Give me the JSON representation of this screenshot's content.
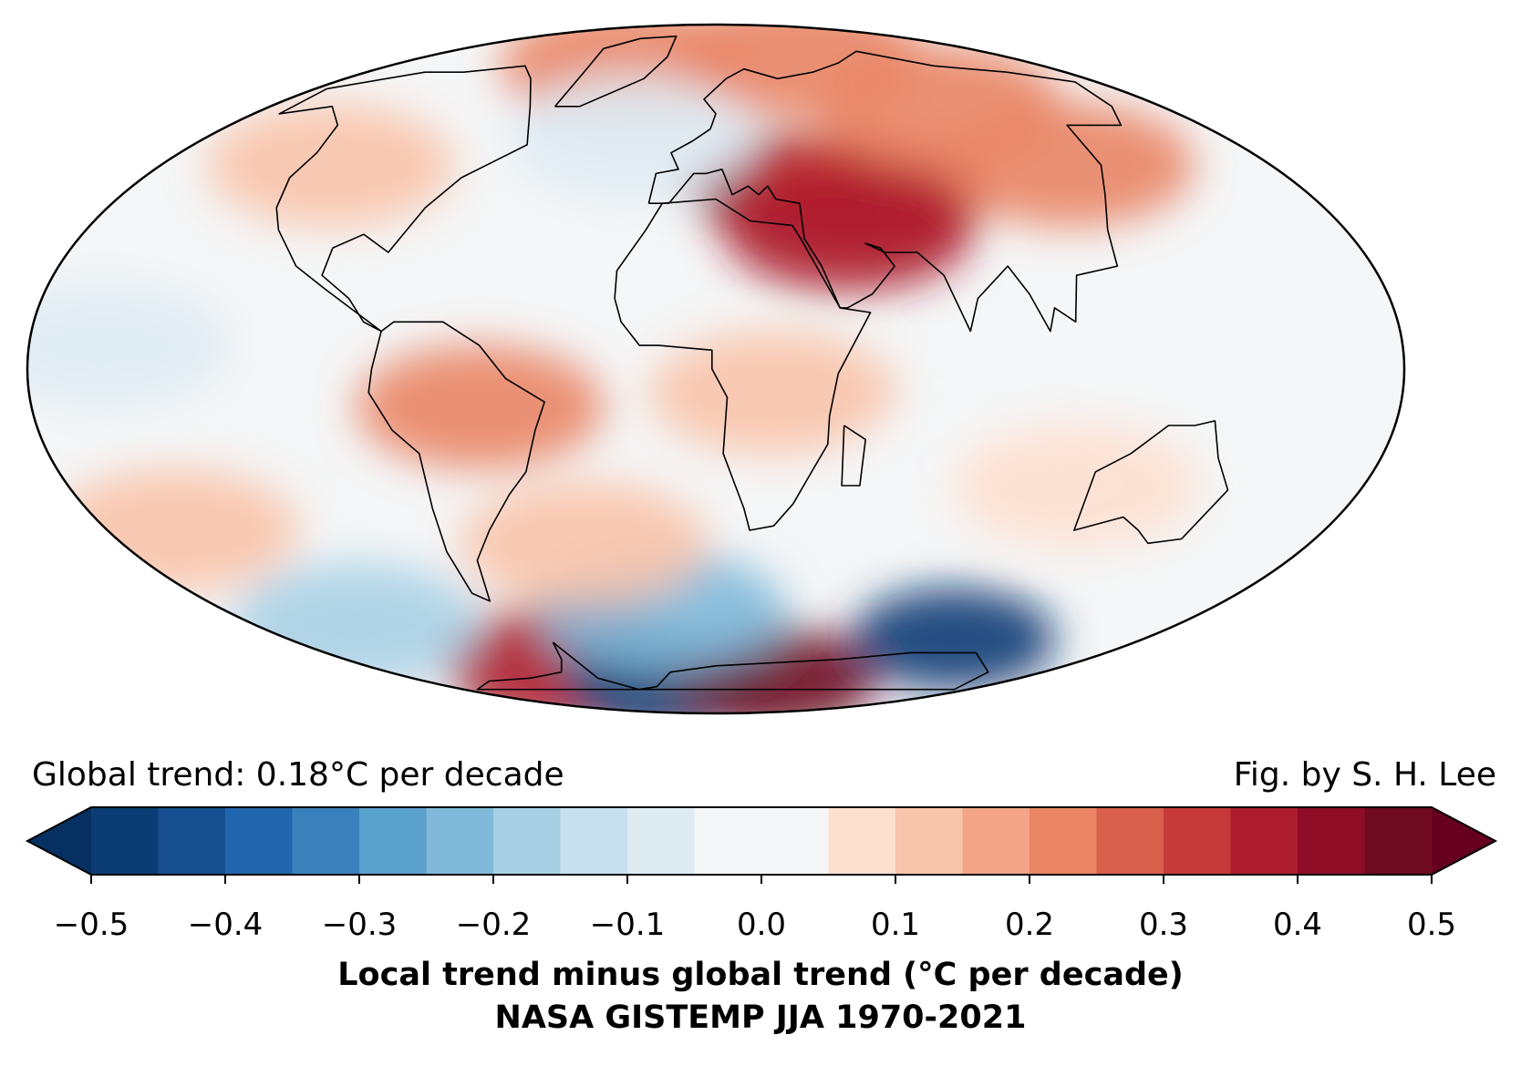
{
  "map": {
    "projection": "mollweide",
    "center_longitude": 10,
    "field": "Local trend minus global trend",
    "colormap": "RdBu_r",
    "coastlines": true,
    "regions": [
      {
        "name": "Europe / Mediterranean / Middle East warm centre",
        "lon": 33,
        "lat": 40,
        "value": 0.42
      },
      {
        "name": "Caspian / Central Asia",
        "lon": 55,
        "lat": 38,
        "value": 0.3
      },
      {
        "name": "Arabian Peninsula",
        "lon": 48,
        "lat": 30,
        "value": 0.35
      },
      {
        "name": "Siberia",
        "lon": 100,
        "lat": 60,
        "value": 0.2
      },
      {
        "name": "East Asia",
        "lon": 125,
        "lat": 45,
        "value": 0.22
      },
      {
        "name": "Western North America",
        "lon": -115,
        "lat": 45,
        "value": 0.12
      },
      {
        "name": "Greenland",
        "lon": -40,
        "lat": 72,
        "value": 0.2
      },
      {
        "name": "Eastern Arctic",
        "lon": 60,
        "lat": 75,
        "value": 0.2
      },
      {
        "name": "Amazon / Brazil",
        "lon": -52,
        "lat": -8,
        "value": 0.2
      },
      {
        "name": "Central Africa",
        "lon": 25,
        "lat": -5,
        "value": 0.12
      },
      {
        "name": "Antarctic Peninsula",
        "lon": -65,
        "lat": -70,
        "value": 0.35
      },
      {
        "name": "West Antarctica",
        "lon": -20,
        "lat": -75,
        "value": -0.5
      },
      {
        "name": "East Antarctic sector",
        "lon": 45,
        "lat": -74,
        "value": 0.45
      },
      {
        "name": "Southern Ocean (Indian)",
        "lon": 110,
        "lat": -62,
        "value": -0.48
      },
      {
        "name": "Southern Ocean (Atlantic)",
        "lon": -10,
        "lat": -55,
        "value": -0.25
      },
      {
        "name": "Southern Ocean (Pacific)",
        "lon": -130,
        "lat": -58,
        "value": -0.2
      },
      {
        "name": "South Pacific warm patch",
        "lon": -150,
        "lat": -35,
        "value": 0.1
      },
      {
        "name": "South Atlantic warm patch",
        "lon": -30,
        "lat": -38,
        "value": 0.1
      },
      {
        "name": "Tropical Pacific",
        "lon": -150,
        "lat": 5,
        "value": -0.08
      },
      {
        "name": "North Atlantic",
        "lon": -20,
        "lat": 52,
        "value": -0.08
      },
      {
        "name": "Indian Ocean",
        "lon": 80,
        "lat": -20,
        "value": -0.05
      },
      {
        "name": "South Indian warm patch",
        "lon": 110,
        "lat": -25,
        "value": 0.08
      }
    ]
  },
  "chart_data": {
    "type": "heatmap",
    "title": "",
    "colorbar": {
      "min": -0.5,
      "max": 0.5,
      "step": 0.05,
      "extend": "both",
      "levels": [
        -0.5,
        -0.45,
        -0.4,
        -0.35,
        -0.3,
        -0.25,
        -0.2,
        -0.15,
        -0.1,
        -0.05,
        0.05,
        0.1,
        0.15,
        0.2,
        0.25,
        0.3,
        0.35,
        0.4,
        0.45,
        0.5
      ],
      "colors": [
        "#0b3c73",
        "#174f91",
        "#2166ac",
        "#3a81bc",
        "#5aa1ce",
        "#80b9d9",
        "#a8d0e4",
        "#c7e0ee",
        "#deebf3",
        "#f5f6f7",
        "#fde0d0",
        "#f8c4ab",
        "#f2a586",
        "#e98565",
        "#d85f4b",
        "#c53a38",
        "#ad1c2d",
        "#8e0c25",
        "#6e0b21"
      ],
      "under_color": "#053061",
      "over_color": "#67001f",
      "tick_labels": [
        "−0.5",
        "−0.4",
        "−0.3",
        "−0.2",
        "−0.1",
        "0.0",
        "0.1",
        "0.2",
        "0.3",
        "0.4",
        "0.5"
      ],
      "tick_values": [
        -0.5,
        -0.4,
        -0.3,
        -0.2,
        -0.1,
        0.0,
        0.1,
        0.2,
        0.3,
        0.4,
        0.5
      ],
      "label": "Local trend minus global trend (°C per decade)",
      "sublabel": "NASA GISTEMP JJA 1970-2021"
    }
  },
  "annotations": {
    "global_trend": "Global trend: 0.18°C per decade",
    "credit": "Fig. by S. H. Lee"
  }
}
